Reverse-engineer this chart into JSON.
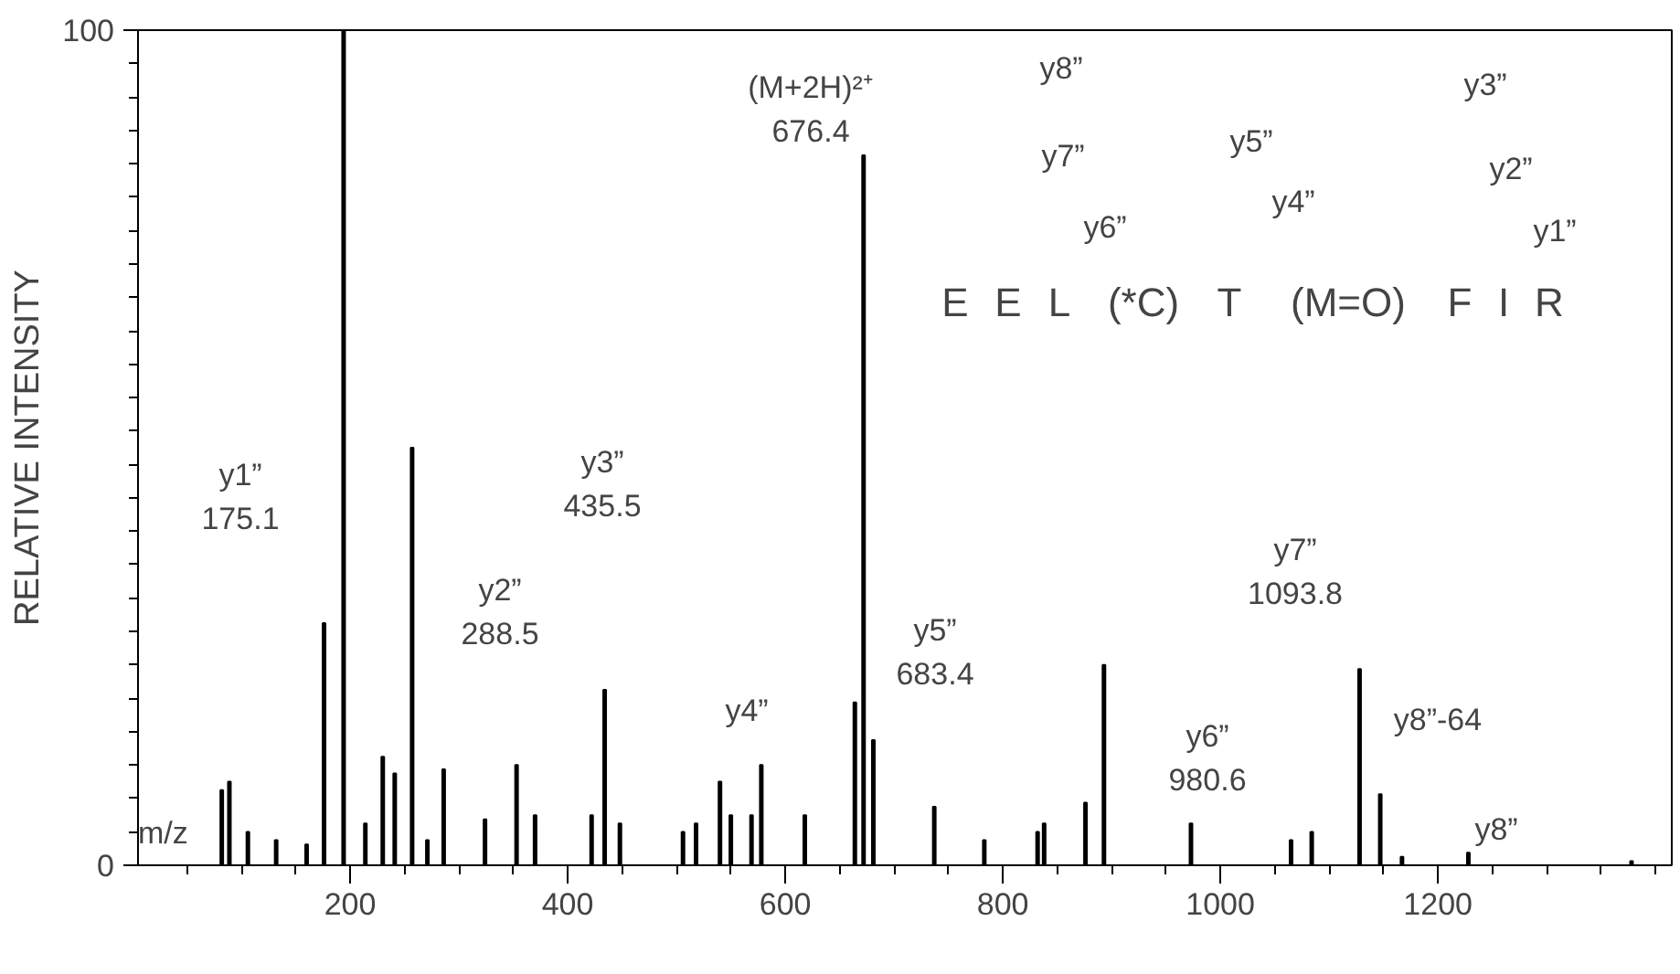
{
  "chart_data": {
    "type": "bar",
    "xlabel": "m/z",
    "ylabel": "RELATIVE INTENSITY",
    "color": "#000000",
    "x": [
      82,
      89,
      106,
      132,
      160,
      176,
      194,
      214,
      230,
      241,
      257,
      271,
      286,
      324,
      353,
      370,
      422,
      434,
      448,
      506,
      518,
      540,
      550,
      569,
      578,
      618,
      664,
      672,
      681,
      737,
      783,
      832,
      838,
      876,
      893,
      973,
      1065,
      1084,
      1128,
      1147,
      1167,
      1228,
      1378
    ],
    "values": [
      9,
      10,
      4,
      3,
      2.5,
      29,
      100,
      5,
      13,
      11,
      50,
      3,
      11.5,
      5.5,
      12,
      6,
      6,
      21,
      5,
      4,
      5,
      10,
      6,
      6,
      12,
      6,
      19.5,
      85,
      15,
      7,
      3,
      4,
      5,
      7.5,
      24,
      5,
      3,
      4,
      23.5,
      8.5,
      1,
      1.5,
      0.5
    ],
    "xlim": [
      5,
      1415
    ],
    "ylim": [
      0,
      100
    ],
    "xticks": [
      200,
      400,
      600,
      800,
      1000,
      1200
    ],
    "yticks": [
      0,
      100
    ],
    "annotations": [
      "y1”\n175.1",
      "y2”\n288.5",
      "y3”\n435.5",
      "y4”",
      "y5”\n683.4",
      "(M+2H)²⁺\n676.4",
      "y6”\n980.6",
      "y7”\n1093.8",
      "y8”-64",
      "y8”",
      "E",
      "E",
      "L",
      "(*C)",
      "T",
      "(M=O)",
      "F",
      "I",
      "R",
      "y8”",
      "y7”",
      "y6”",
      "y5”",
      "y4”",
      "y3”",
      "y2”",
      "y1”"
    ]
  }
}
